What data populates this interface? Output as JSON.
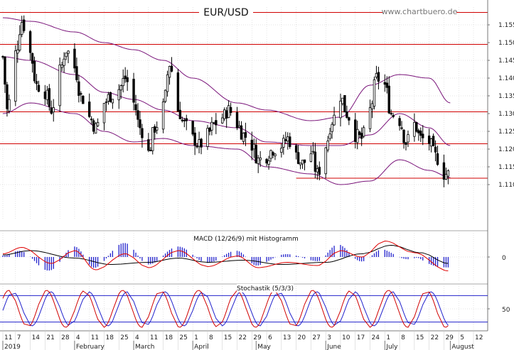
{
  "chart_data": [
    {
      "type": "candlestick",
      "title": "EUR/USD",
      "watermark": "www.chartbuero.de",
      "ylim": [
        1.1,
        1.16
      ],
      "yticks": [
        1.11,
        1.115,
        1.12,
        1.125,
        1.13,
        1.135,
        1.14,
        1.145,
        1.15,
        1.155
      ],
      "yticks_text": [
        "1.110",
        "1.115",
        "1.120",
        "1.125",
        "1.130",
        "1.135",
        "1.140",
        "1.145",
        "1.150",
        "1.155"
      ],
      "x_date_labels": [
        "11",
        "7",
        "14",
        "21",
        "28",
        "4",
        "11",
        "18",
        "25",
        "4",
        "11",
        "18",
        "25",
        "1",
        "8",
        "15",
        "22",
        "29",
        "6",
        "13",
        "20",
        "27",
        "3",
        "10",
        "17",
        "24",
        "1",
        "8",
        "15",
        "22",
        "29",
        "5",
        "12"
      ],
      "x_date_first": "2019-01-01",
      "x_date_last": "2019-08-12",
      "month_labels": [
        {
          "text": "2019",
          "date": "2019-01-01"
        },
        {
          "text": "February",
          "date": "2019-02-04"
        },
        {
          "text": "March",
          "date": "2019-03-04"
        },
        {
          "text": "April",
          "date": "2019-04-01"
        },
        {
          "text": "May",
          "date": "2019-05-01"
        },
        {
          "text": "June",
          "date": "2019-06-03"
        },
        {
          "text": "July",
          "date": "2019-07-01"
        },
        {
          "text": "August",
          "date": "2019-08-01"
        }
      ],
      "horizontal_lines": [
        1.1585,
        1.1495,
        1.1305,
        1.1215
      ],
      "support_line": {
        "start": "2019-05-20",
        "end": "2019-08-01",
        "value": 1.1118
      },
      "close_anchors": [
        {
          "date": "2019-01-01",
          "value": 1.146
        },
        {
          "date": "2019-01-03",
          "value": 1.131
        },
        {
          "date": "2019-01-07",
          "value": 1.147
        },
        {
          "date": "2019-01-10",
          "value": 1.156
        },
        {
          "date": "2019-01-14",
          "value": 1.147
        },
        {
          "date": "2019-01-17",
          "value": 1.138
        },
        {
          "date": "2019-01-21",
          "value": 1.136
        },
        {
          "date": "2019-01-24",
          "value": 1.131
        },
        {
          "date": "2019-01-28",
          "value": 1.142
        },
        {
          "date": "2019-01-31",
          "value": 1.148
        },
        {
          "date": "2019-02-04",
          "value": 1.143
        },
        {
          "date": "2019-02-07",
          "value": 1.135
        },
        {
          "date": "2019-02-11",
          "value": 1.129
        },
        {
          "date": "2019-02-14",
          "value": 1.126
        },
        {
          "date": "2019-02-18",
          "value": 1.133
        },
        {
          "date": "2019-02-21",
          "value": 1.135
        },
        {
          "date": "2019-02-25",
          "value": 1.137
        },
        {
          "date": "2019-02-28",
          "value": 1.14
        },
        {
          "date": "2019-03-04",
          "value": 1.133
        },
        {
          "date": "2019-03-07",
          "value": 1.126
        },
        {
          "date": "2019-03-11",
          "value": 1.119
        },
        {
          "date": "2019-03-14",
          "value": 1.126
        },
        {
          "date": "2019-03-18",
          "value": 1.132
        },
        {
          "date": "2019-03-21",
          "value": 1.144
        },
        {
          "date": "2019-03-25",
          "value": 1.131
        },
        {
          "date": "2019-03-28",
          "value": 1.127
        },
        {
          "date": "2019-04-01",
          "value": 1.123
        },
        {
          "date": "2019-04-04",
          "value": 1.121
        },
        {
          "date": "2019-04-08",
          "value": 1.124
        },
        {
          "date": "2019-04-11",
          "value": 1.127
        },
        {
          "date": "2019-04-15",
          "value": 1.129
        },
        {
          "date": "2019-04-18",
          "value": 1.131
        },
        {
          "date": "2019-04-22",
          "value": 1.127
        },
        {
          "date": "2019-04-25",
          "value": 1.124
        },
        {
          "date": "2019-04-29",
          "value": 1.121
        },
        {
          "date": "2019-05-02",
          "value": 1.117
        },
        {
          "date": "2019-05-06",
          "value": 1.118
        },
        {
          "date": "2019-05-09",
          "value": 1.12
        },
        {
          "date": "2019-05-13",
          "value": 1.121
        },
        {
          "date": "2019-05-16",
          "value": 1.123
        },
        {
          "date": "2019-05-20",
          "value": 1.118
        },
        {
          "date": "2019-05-23",
          "value": 1.116
        },
        {
          "date": "2019-05-27",
          "value": 1.119
        },
        {
          "date": "2019-05-30",
          "value": 1.113
        },
        {
          "date": "2019-06-03",
          "value": 1.121
        },
        {
          "date": "2019-06-06",
          "value": 1.128
        },
        {
          "date": "2019-06-10",
          "value": 1.135
        },
        {
          "date": "2019-06-13",
          "value": 1.13
        },
        {
          "date": "2019-06-17",
          "value": 1.124
        },
        {
          "date": "2019-06-20",
          "value": 1.123
        },
        {
          "date": "2019-06-24",
          "value": 1.131
        },
        {
          "date": "2019-06-27",
          "value": 1.14
        },
        {
          "date": "2019-07-01",
          "value": 1.138
        },
        {
          "date": "2019-07-04",
          "value": 1.13
        },
        {
          "date": "2019-07-08",
          "value": 1.128
        },
        {
          "date": "2019-07-11",
          "value": 1.122
        },
        {
          "date": "2019-07-15",
          "value": 1.127
        },
        {
          "date": "2019-07-18",
          "value": 1.123
        },
        {
          "date": "2019-07-22",
          "value": 1.122
        },
        {
          "date": "2019-07-25",
          "value": 1.118
        },
        {
          "date": "2019-07-29",
          "value": 1.113
        },
        {
          "date": "2019-07-31",
          "value": 1.113
        }
      ],
      "bands_upper_anchors": [
        {
          "date": "2019-01-01",
          "value": 1.157
        },
        {
          "date": "2019-01-14",
          "value": 1.156
        },
        {
          "date": "2019-02-04",
          "value": 1.153
        },
        {
          "date": "2019-02-18",
          "value": 1.15
        },
        {
          "date": "2019-03-04",
          "value": 1.148
        },
        {
          "date": "2019-03-18",
          "value": 1.145
        },
        {
          "date": "2019-04-01",
          "value": 1.14
        },
        {
          "date": "2019-04-22",
          "value": 1.133
        },
        {
          "date": "2019-05-06",
          "value": 1.131
        },
        {
          "date": "2019-05-27",
          "value": 1.128
        },
        {
          "date": "2019-06-10",
          "value": 1.129
        },
        {
          "date": "2019-06-24",
          "value": 1.138
        },
        {
          "date": "2019-07-08",
          "value": 1.141
        },
        {
          "date": "2019-07-22",
          "value": 1.14
        },
        {
          "date": "2019-08-01",
          "value": 1.133
        }
      ],
      "bands_middle_anchors": [
        {
          "date": "2019-01-01",
          "value": 1.146
        },
        {
          "date": "2019-01-14",
          "value": 1.145
        },
        {
          "date": "2019-02-04",
          "value": 1.141
        },
        {
          "date": "2019-02-18",
          "value": 1.136
        },
        {
          "date": "2019-03-04",
          "value": 1.134
        },
        {
          "date": "2019-03-18",
          "value": 1.131
        },
        {
          "date": "2019-04-01",
          "value": 1.128
        },
        {
          "date": "2019-04-22",
          "value": 1.126
        },
        {
          "date": "2019-05-06",
          "value": 1.122
        },
        {
          "date": "2019-05-27",
          "value": 1.121
        },
        {
          "date": "2019-06-10",
          "value": 1.121
        },
        {
          "date": "2019-06-24",
          "value": 1.124
        },
        {
          "date": "2019-07-08",
          "value": 1.13
        },
        {
          "date": "2019-07-22",
          "value": 1.126
        },
        {
          "date": "2019-08-01",
          "value": 1.121
        }
      ],
      "bands_lower_anchors": [
        {
          "date": "2019-01-01",
          "value": 1.13
        },
        {
          "date": "2019-01-14",
          "value": 1.133
        },
        {
          "date": "2019-02-04",
          "value": 1.13
        },
        {
          "date": "2019-02-18",
          "value": 1.125
        },
        {
          "date": "2019-03-04",
          "value": 1.122
        },
        {
          "date": "2019-03-18",
          "value": 1.123
        },
        {
          "date": "2019-04-01",
          "value": 1.121
        },
        {
          "date": "2019-04-22",
          "value": 1.12
        },
        {
          "date": "2019-05-06",
          "value": 1.115
        },
        {
          "date": "2019-05-27",
          "value": 1.113
        },
        {
          "date": "2019-06-10",
          "value": 1.11
        },
        {
          "date": "2019-06-24",
          "value": 1.111
        },
        {
          "date": "2019-07-08",
          "value": 1.117
        },
        {
          "date": "2019-07-22",
          "value": 1.114
        },
        {
          "date": "2019-08-01",
          "value": 1.112
        }
      ]
    },
    {
      "type": "macd",
      "title": "MACD (12/26/9) mit Histogramm",
      "zero_label": "0",
      "macd_anchors": [
        {
          "date": "2019-01-01",
          "value": 0.3
        },
        {
          "date": "2019-01-10",
          "value": 0.9
        },
        {
          "date": "2019-01-24",
          "value": -0.6
        },
        {
          "date": "2019-02-04",
          "value": 0.6
        },
        {
          "date": "2019-02-14",
          "value": -1.2
        },
        {
          "date": "2019-02-28",
          "value": 0.3
        },
        {
          "date": "2019-03-11",
          "value": -1.0
        },
        {
          "date": "2019-03-25",
          "value": 0.6
        },
        {
          "date": "2019-04-08",
          "value": -0.9
        },
        {
          "date": "2019-04-22",
          "value": 0.1
        },
        {
          "date": "2019-05-02",
          "value": -1.0
        },
        {
          "date": "2019-05-16",
          "value": -0.5
        },
        {
          "date": "2019-05-30",
          "value": -0.8
        },
        {
          "date": "2019-06-10",
          "value": 0.6
        },
        {
          "date": "2019-06-20",
          "value": 0.0
        },
        {
          "date": "2019-07-01",
          "value": 1.5
        },
        {
          "date": "2019-07-15",
          "value": 0.4
        },
        {
          "date": "2019-07-31",
          "value": -1.3
        }
      ],
      "signal_anchors": [
        {
          "date": "2019-01-01",
          "value": 0.2
        },
        {
          "date": "2019-01-14",
          "value": 0.6
        },
        {
          "date": "2019-02-04",
          "value": -0.1
        },
        {
          "date": "2019-02-21",
          "value": -0.7
        },
        {
          "date": "2019-03-11",
          "value": -0.5
        },
        {
          "date": "2019-03-25",
          "value": -0.1
        },
        {
          "date": "2019-04-08",
          "value": -0.5
        },
        {
          "date": "2019-04-25",
          "value": -0.3
        },
        {
          "date": "2019-05-13",
          "value": -0.7
        },
        {
          "date": "2019-06-03",
          "value": -0.5
        },
        {
          "date": "2019-06-20",
          "value": 0.3
        },
        {
          "date": "2019-07-04",
          "value": 1.1
        },
        {
          "date": "2019-07-18",
          "value": 0.4
        },
        {
          "date": "2019-07-31",
          "value": -0.6
        }
      ]
    },
    {
      "type": "stochastic",
      "title": "Stochastik (5/3/3)",
      "ylim": [
        0,
        100
      ],
      "ytick_value": 50,
      "ytick_text": "50",
      "levels": [
        80,
        20
      ],
      "k_cycle_days": 18,
      "d_lag_days": 2
    }
  ],
  "colors": {
    "candle": "#000000",
    "red_line": "#d00000",
    "band": "#7a147a",
    "macd": "#000000",
    "signal": "#e00000",
    "histogram": "#2222cc",
    "stoch_k": "#d00000",
    "stoch_d": "#2222cc",
    "stoch_level": "#2222cc",
    "grid": "#c8c8c8",
    "frame": "#555555"
  }
}
